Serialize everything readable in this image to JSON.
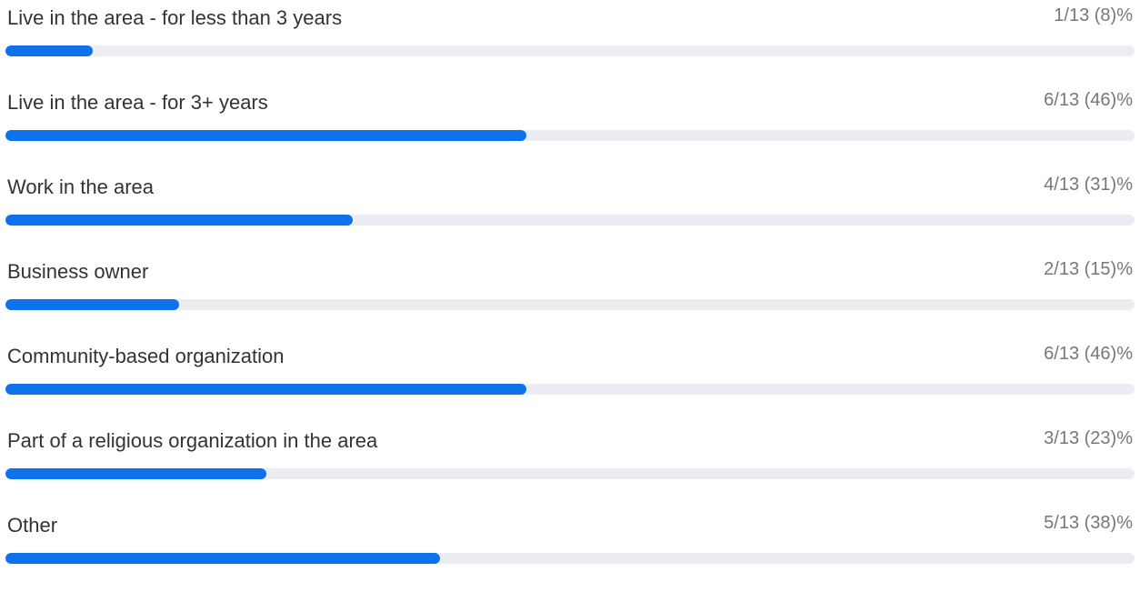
{
  "colors": {
    "bar_fill": "#0e72ed",
    "bar_track": "#ebedf2",
    "label_text": "#333333",
    "result_text": "#777777"
  },
  "poll": {
    "options": [
      {
        "label": "Live in the area - for less than 3 years",
        "result": "1/13 (8)%",
        "votes": 1,
        "total": 13
      },
      {
        "label": "Live in the area - for 3+ years",
        "result": "6/13 (46)%",
        "votes": 6,
        "total": 13
      },
      {
        "label": "Work in the area",
        "result": "4/13 (31)%",
        "votes": 4,
        "total": 13
      },
      {
        "label": "Business owner",
        "result": "2/13 (15)%",
        "votes": 2,
        "total": 13
      },
      {
        "label": "Community-based organization",
        "result": "6/13 (46)%",
        "votes": 6,
        "total": 13
      },
      {
        "label": "Part of a religious organization in the area",
        "result": "3/13 (23)%",
        "votes": 3,
        "total": 13
      },
      {
        "label": "Other",
        "result": "5/13 (38)%",
        "votes": 5,
        "total": 13
      }
    ]
  }
}
